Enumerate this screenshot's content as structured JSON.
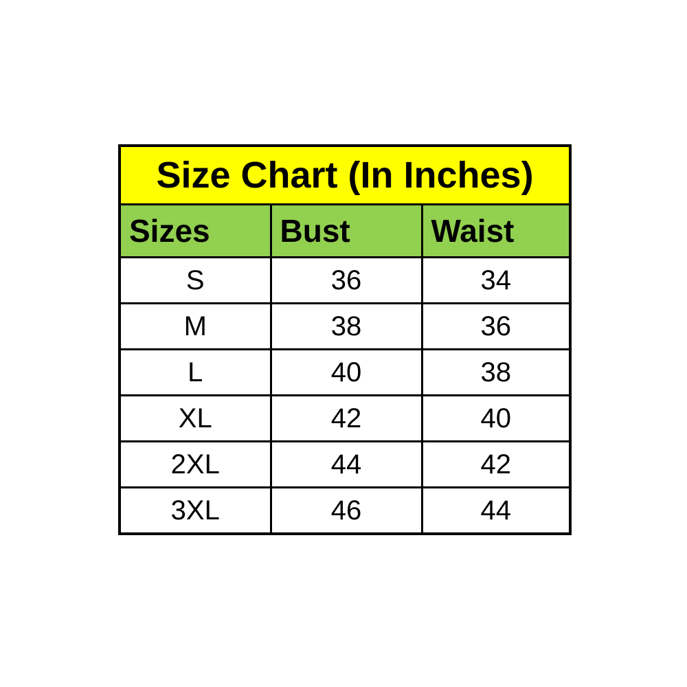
{
  "chart_data": {
    "type": "table",
    "title": "Size Chart (In Inches)",
    "columns": [
      "Sizes",
      "Bust",
      "Waist"
    ],
    "rows": [
      [
        "S",
        "36",
        "34"
      ],
      [
        "M",
        "38",
        "36"
      ],
      [
        "L",
        "40",
        "38"
      ],
      [
        "XL",
        "42",
        "40"
      ],
      [
        "2XL",
        "44",
        "42"
      ],
      [
        "3XL",
        "46",
        "44"
      ]
    ],
    "units": "inches",
    "layout": "title row spans all columns; header row left-aligned; data rows centered"
  },
  "colors": {
    "title_bg": "#ffff00",
    "header_bg": "#92d050",
    "border": "#000000",
    "cell_bg": "#ffffff",
    "text": "#000000",
    "page_bg": "#ffffff"
  }
}
